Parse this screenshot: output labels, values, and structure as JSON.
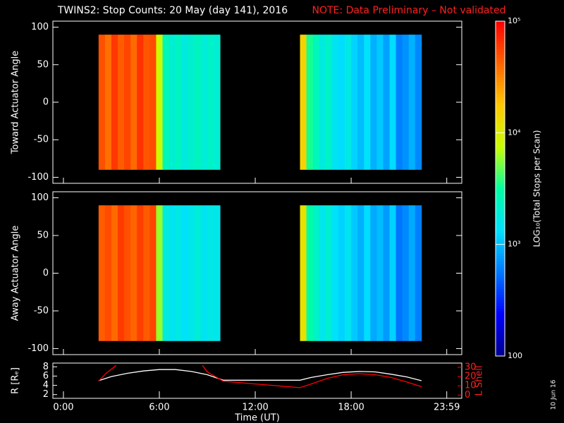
{
  "title": "TWINS2: Stop Counts: 20 May (day 141), 2016",
  "note": "NOTE: Data Preliminary – Not validated",
  "date_stamp": "10 Jun 16",
  "colorbar": {
    "label": "LOG₁₀(Total Stops per Scan)",
    "lim": [
      100,
      100000
    ],
    "log": true,
    "ticks": [
      {
        "value": 100000,
        "label": "10⁵"
      },
      {
        "value": 10000,
        "label": "10⁴"
      },
      {
        "value": 1000,
        "label": "10³"
      },
      100
    ],
    "colormap": [
      "#00008c",
      "#0000ff",
      "#0078ff",
      "#00e0ff",
      "#00ffa0",
      "#c8ff00",
      "#ffc800",
      "#ff6400",
      "#ff0000"
    ]
  },
  "chart_data": [
    {
      "type": "heatmap",
      "ylabel": "Toward Actuator Angle",
      "xlim": [
        -0.66,
        24.92
      ],
      "ylim": [
        -108,
        108
      ],
      "yticks": [
        100,
        50,
        0,
        -50,
        -100
      ],
      "angles": [
        -90,
        90
      ],
      "segments": [
        {
          "bins": [
            2.2,
            2.6,
            3.0,
            3.4,
            3.8,
            4.2,
            4.6,
            5.0,
            5.4,
            5.8,
            6.2,
            6.6,
            7.0,
            7.4,
            7.8,
            8.2,
            8.6,
            9.0,
            9.4,
            9.8
          ],
          "values": [
            50000,
            38000,
            62000,
            45000,
            55000,
            40000,
            65000,
            48000,
            52000,
            8000,
            2600,
            2000,
            2300,
            1800,
            2100,
            2400,
            1900,
            2200,
            2000
          ]
        },
        {
          "bins": [
            14.8,
            15.2,
            15.6,
            16.0,
            16.4,
            16.8,
            17.2,
            17.6,
            18.0,
            18.4,
            18.8,
            19.2,
            19.6,
            20.0,
            20.4,
            20.8,
            21.2,
            21.6,
            22.0,
            22.4
          ],
          "values": [
            15000,
            3500,
            2500,
            1800,
            2200,
            1500,
            1300,
            1700,
            1200,
            1000,
            1400,
            900,
            1100,
            800,
            1300,
            600,
            700,
            900,
            650
          ]
        }
      ]
    },
    {
      "type": "heatmap",
      "ylabel": "Away Actuator Angle",
      "xlim": [
        -0.66,
        24.92
      ],
      "ylim": [
        -108,
        108
      ],
      "yticks": [
        100,
        50,
        0,
        -50,
        -100
      ],
      "angles": [
        -90,
        90
      ],
      "segments": [
        {
          "bins": [
            2.2,
            2.6,
            3.0,
            3.4,
            3.8,
            4.2,
            4.6,
            5.0,
            5.4,
            5.8,
            6.2,
            6.6,
            7.0,
            7.4,
            7.8,
            8.2,
            8.6,
            9.0,
            9.4,
            9.8
          ],
          "values": [
            45000,
            52000,
            40000,
            60000,
            50000,
            42000,
            58000,
            46000,
            55000,
            6000,
            1800,
            1500,
            1700,
            1400,
            1600,
            1900,
            1500,
            1700,
            1600
          ]
        },
        {
          "bins": [
            14.8,
            15.2,
            15.6,
            16.0,
            16.4,
            16.8,
            17.2,
            17.6,
            18.0,
            18.4,
            18.8,
            19.2,
            19.6,
            20.0,
            20.4,
            20.8,
            21.2,
            21.6,
            22.0,
            22.4
          ],
          "values": [
            12000,
            3000,
            2200,
            1600,
            2000,
            1400,
            1200,
            1500,
            1100,
            900,
            1300,
            850,
            1000,
            750,
            1200,
            550,
            650,
            850,
            600
          ]
        }
      ]
    },
    {
      "type": "line",
      "xlabel": "Time (UT)",
      "ylabel": "R [Rₑ]",
      "y2label": "L Shell",
      "xlim": [
        -0.66,
        24.92
      ],
      "xticks": [
        {
          "value": 0,
          "label": "0:00"
        },
        {
          "value": 6,
          "label": "6:00"
        },
        {
          "value": 12,
          "label": "12:00"
        },
        {
          "value": 18,
          "label": "18:00"
        },
        {
          "value": 23.98,
          "label": "23:59"
        }
      ],
      "ylim": [
        1.5,
        8.5
      ],
      "yticks": [
        2,
        4,
        6,
        8
      ],
      "y2lim": [
        -2,
        33
      ],
      "y2ticks": [
        0,
        10,
        20,
        30
      ],
      "series": [
        {
          "color": "#ffffff",
          "x": [
            2.2,
            3,
            4,
            5,
            6,
            7,
            8,
            9,
            10,
            14.8,
            15.5,
            16.5,
            17.5,
            18.5,
            19.5,
            20.5,
            21.5,
            22.4
          ],
          "values": [
            5,
            5.9,
            6.6,
            7.1,
            7.4,
            7.4,
            7.0,
            6.3,
            5.1,
            5.1,
            5.7,
            6.3,
            6.8,
            7.0,
            6.9,
            6.4,
            5.8,
            5.0
          ]
        },
        {
          "color": "#ff0000",
          "axis": "y2",
          "x": [
            2.2,
            2.7,
            3.3,
            6,
            8.7,
            9.0,
            10,
            12,
            14.8,
            15.5,
            16.5,
            17.5,
            18.5,
            19.5,
            20.5,
            21.5,
            22.4
          ],
          "values": [
            15,
            24,
            32,
            null,
            32,
            25,
            15,
            12,
            8,
            12,
            18,
            22,
            23,
            22,
            19,
            14,
            9
          ]
        }
      ]
    }
  ]
}
